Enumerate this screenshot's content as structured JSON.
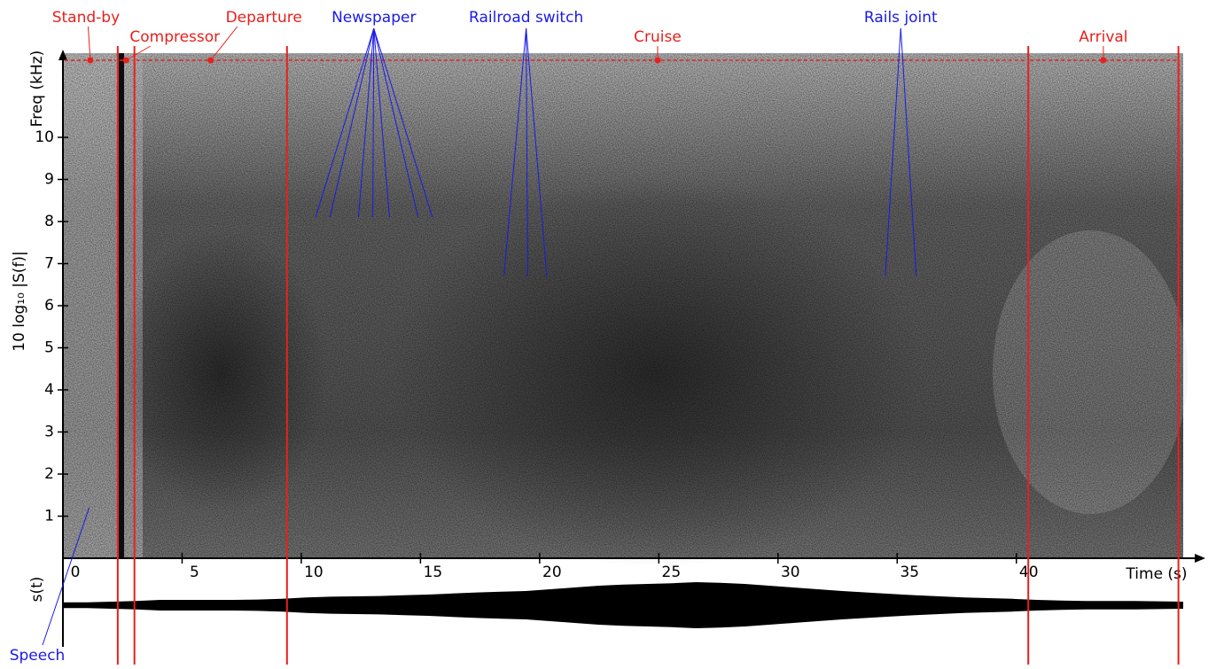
{
  "chart_data": {
    "type": "spectrogram",
    "x_label": "Time (s)",
    "y_label": "Freq (kHz)",
    "y_title": "10 log₁₀ |S(f)|",
    "signal_label": "s(t)",
    "xlim": [
      0,
      47
    ],
    "ylim": [
      0,
      12
    ],
    "xticks": [
      0,
      5,
      10,
      15,
      20,
      25,
      30,
      35,
      40
    ],
    "yticks": [
      1,
      2,
      3,
      4,
      5,
      6,
      7,
      8,
      9,
      10
    ],
    "phases": [
      {
        "name": "Stand-by",
        "start": 0,
        "end": 2.3
      },
      {
        "name": "Compressor",
        "start": 2.3,
        "end": 3.0
      },
      {
        "name": "Departure",
        "start": 3.0,
        "end": 9.4
      },
      {
        "name": "Cruise",
        "start": 9.4,
        "end": 40.5
      },
      {
        "name": "Arrival",
        "start": 40.5,
        "end": 46.8
      }
    ],
    "phase_color": "#e8201c",
    "events": [
      {
        "name": "Newspaper",
        "times": [
          10.6,
          11.2,
          12.4,
          13.0,
          13.7,
          14.9,
          15.5
        ],
        "freq": 8.1
      },
      {
        "name": "Railroad switch",
        "times": [
          18.5,
          19.5,
          20.3
        ],
        "freq": 6.7
      },
      {
        "name": "Rails joint",
        "times": [
          34.5,
          35.8
        ],
        "freq": 6.7
      },
      {
        "name": "Speech",
        "times": [
          1.1
        ],
        "freq": 1.2
      }
    ],
    "event_color": "#1a1ae6",
    "envelope": [
      0.08,
      0.08,
      0.1,
      0.12,
      0.15,
      0.15,
      0.15,
      0.15,
      0.16,
      0.18,
      0.22,
      0.24,
      0.25,
      0.26,
      0.28,
      0.3,
      0.33,
      0.36,
      0.38,
      0.4,
      0.45,
      0.5,
      0.55,
      0.58,
      0.6,
      0.62,
      0.65,
      0.63,
      0.6,
      0.55,
      0.5,
      0.45,
      0.4,
      0.36,
      0.32,
      0.28,
      0.25,
      0.22,
      0.2,
      0.18,
      0.15,
      0.13,
      0.12,
      0.12,
      0.12,
      0.11,
      0.1
    ]
  }
}
